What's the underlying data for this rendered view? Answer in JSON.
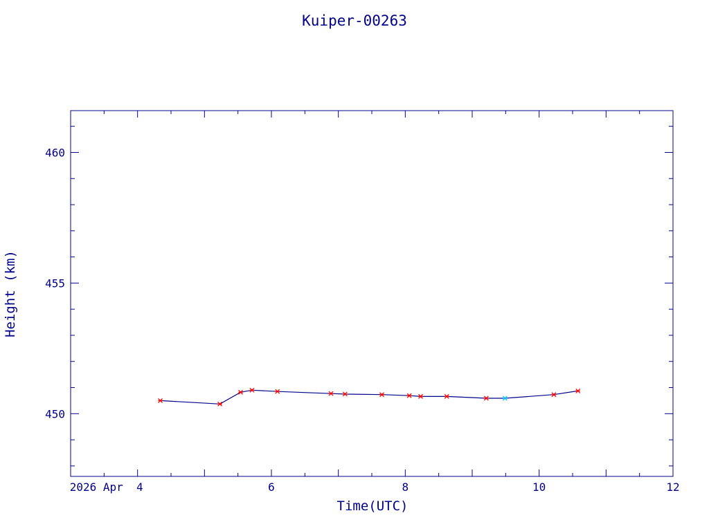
{
  "chart_data": {
    "type": "line",
    "title": "Kuiper-00263",
    "xlabel": "Time(UTC)",
    "ylabel": "Height (km)",
    "xlim": [
      3.0,
      12.0
    ],
    "ylim": [
      447.6,
      461.6
    ],
    "x_ticks": [
      {
        "value": 4,
        "label": "2026 Apr  4"
      },
      {
        "value": 6,
        "label": "6"
      },
      {
        "value": 8,
        "label": "8"
      },
      {
        "value": 10,
        "label": "10"
      },
      {
        "value": 12,
        "label": "12"
      }
    ],
    "y_ticks": [
      {
        "value": 450,
        "label": "450"
      },
      {
        "value": 455,
        "label": "455"
      },
      {
        "value": 460,
        "label": "460"
      }
    ],
    "grid": false,
    "series": [
      {
        "line_color": "#00008b",
        "marker_color": "#ff0000",
        "highlight_color": "#00bfff",
        "points": [
          {
            "x": 4.34,
            "y": 450.5
          },
          {
            "x": 5.23,
            "y": 450.37
          },
          {
            "x": 5.54,
            "y": 450.82
          },
          {
            "x": 5.71,
            "y": 450.9
          },
          {
            "x": 6.09,
            "y": 450.85
          },
          {
            "x": 6.89,
            "y": 450.77
          },
          {
            "x": 7.1,
            "y": 450.75
          },
          {
            "x": 7.65,
            "y": 450.73
          },
          {
            "x": 8.06,
            "y": 450.69
          },
          {
            "x": 8.23,
            "y": 450.66
          },
          {
            "x": 8.62,
            "y": 450.66
          },
          {
            "x": 9.21,
            "y": 450.59
          },
          {
            "x": 9.49,
            "y": 450.59,
            "highlight": true
          },
          {
            "x": 10.22,
            "y": 450.73
          },
          {
            "x": 10.58,
            "y": 450.87
          }
        ]
      }
    ]
  }
}
